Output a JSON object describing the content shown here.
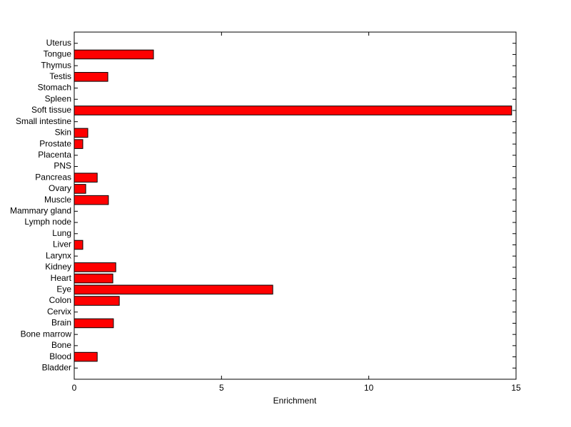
{
  "chart_data": {
    "type": "barh",
    "xlabel": "Enrichment",
    "categories": [
      "Bladder",
      "Blood",
      "Bone",
      "Bone marrow",
      "Brain",
      "Cervix",
      "Colon",
      "Eye",
      "Heart",
      "Kidney",
      "Larynx",
      "Liver",
      "Lung",
      "Lymph node",
      "Mammary gland",
      "Muscle",
      "Ovary",
      "Pancreas",
      "PNS",
      "Placenta",
      "Prostate",
      "Skin",
      "Small intestine",
      "Soft tissue",
      "Spleen",
      "Stomach",
      "Testis",
      "Thymus",
      "Tongue",
      "Uterus"
    ],
    "values": [
      0,
      0.78,
      0,
      0,
      1.33,
      0,
      1.53,
      6.74,
      1.31,
      1.41,
      0,
      0.29,
      0,
      0,
      0,
      1.16,
      0.39,
      0.78,
      0,
      0,
      0.29,
      0.46,
      0,
      14.85,
      0,
      0,
      1.14,
      0,
      2.69,
      0
    ],
    "color": "#ff0000",
    "xlim": [
      0,
      15
    ],
    "xticks": [
      0,
      5,
      10,
      15
    ]
  }
}
